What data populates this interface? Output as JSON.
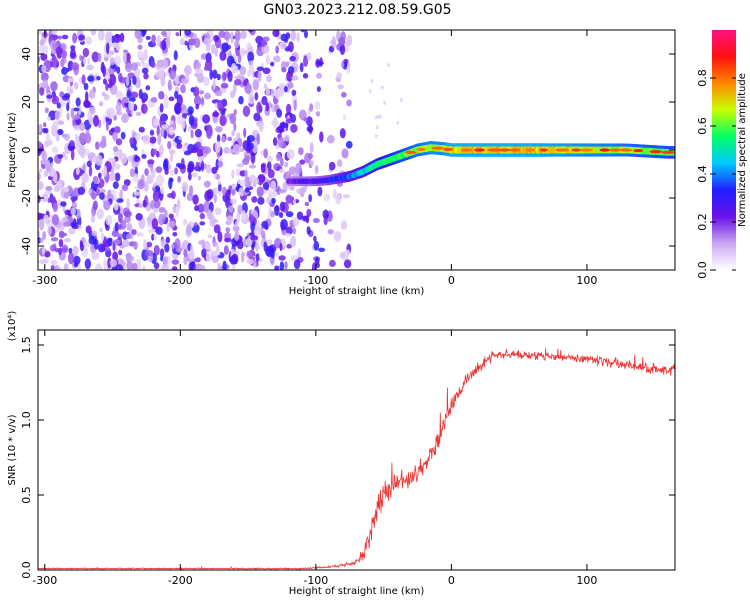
{
  "title": "GN03.2023.212.08.59.G05",
  "chart_data": [
    {
      "type": "heatmap",
      "name": "spectrogram",
      "xlabel": "Height of straight line (km)",
      "ylabel": "Frequency (Hz)",
      "xlim": [
        -305,
        165
      ],
      "ylim": [
        -50,
        50
      ],
      "xticks": [
        -300,
        -200,
        -100,
        0,
        100
      ],
      "yticks": [
        -40,
        -20,
        0,
        20,
        40
      ],
      "colorbar": {
        "label": "Normalized spectral amplitude",
        "range": [
          0,
          1
        ],
        "ticks": [
          "0.0",
          "0.2",
          "0.4",
          "0.6",
          "0.8"
        ],
        "colors": [
          "#ffffff",
          "#c9a6f2",
          "#6a10e8",
          "#2020ff",
          "#00c8ff",
          "#00ff66",
          "#c8ff00",
          "#ff8800",
          "#ff1010",
          "#ff1080"
        ]
      },
      "noise_region_km": [
        -305,
        -75
      ],
      "ridge": {
        "x_km": [
          -120,
          -100,
          -90,
          -75,
          -65,
          -55,
          -45,
          -35,
          -25,
          -15,
          -5,
          0,
          20,
          60,
          100,
          130,
          160
        ],
        "freq_hz": [
          -13,
          -13,
          -12.5,
          -11,
          -9,
          -6,
          -4,
          -2,
          0,
          1,
          0.5,
          0,
          0,
          0,
          0,
          0,
          -1
        ],
        "amplitude": [
          0.3,
          0.35,
          0.4,
          0.5,
          0.6,
          0.7,
          0.75,
          0.8,
          0.85,
          0.9,
          0.9,
          0.95,
          0.95,
          0.95,
          0.9,
          0.85,
          0.8
        ]
      }
    },
    {
      "type": "line",
      "name": "snr",
      "xlabel": "Height of straight line (km)",
      "ylabel": "SNR (10 * v/v)",
      "multiplier": "(x10⁴)",
      "xlim": [
        -305,
        165
      ],
      "ylim": [
        0,
        1.6
      ],
      "xticks": [
        -300,
        -200,
        -100,
        0,
        100
      ],
      "yticks": [
        "0.0",
        "0.5",
        "1.0",
        "1.5"
      ],
      "color": "#ee3333",
      "series": [
        {
          "x": [
            -305,
            -200,
            -110,
            -90,
            -75,
            -70,
            -65,
            -60,
            -55,
            -50,
            -40,
            -30,
            -20,
            -10,
            -5,
            0,
            10,
            20,
            30,
            40,
            60,
            80,
            100,
            120,
            140,
            165
          ],
          "y": [
            0.01,
            0.01,
            0.01,
            0.02,
            0.04,
            0.06,
            0.1,
            0.25,
            0.4,
            0.5,
            0.57,
            0.6,
            0.7,
            0.85,
            1.0,
            1.1,
            1.25,
            1.35,
            1.43,
            1.44,
            1.43,
            1.42,
            1.41,
            1.38,
            1.35,
            1.33
          ],
          "noise": [
            0.005,
            0.005,
            0.006,
            0.01,
            0.02,
            0.03,
            0.05,
            0.1,
            0.12,
            0.12,
            0.12,
            0.11,
            0.1,
            0.09,
            0.08,
            0.07,
            0.06,
            0.05,
            0.05,
            0.04,
            0.04,
            0.04,
            0.04,
            0.05,
            0.05,
            0.05
          ]
        }
      ]
    }
  ]
}
